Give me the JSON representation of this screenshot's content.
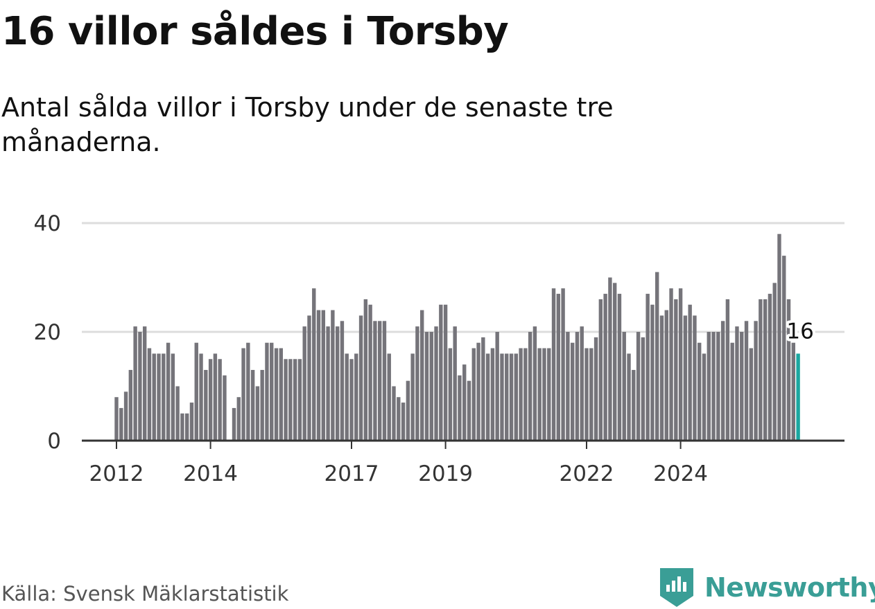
{
  "title": "16 villor såldes i Torsby",
  "subtitle": "Antal sålda villor i Torsby under de senaste tre månaderna.",
  "source": "Källa: Svensk Mäklarstatistik",
  "brand": {
    "name": "Newsworthy",
    "icon": "newsworthy-logo-icon",
    "color": "#3a9e96"
  },
  "colors": {
    "bar": "#75747a",
    "highlight": "#1aa7a0",
    "grid": "#dddddd",
    "axis": "#333333"
  },
  "chart_data": {
    "type": "bar",
    "x_start": "2012-01",
    "x_interval": "month",
    "values": [
      8,
      6,
      9,
      13,
      21,
      20,
      21,
      17,
      16,
      16,
      16,
      18,
      16,
      10,
      5,
      5,
      7,
      18,
      16,
      13,
      15,
      16,
      15,
      12,
      0,
      6,
      8,
      17,
      18,
      13,
      10,
      13,
      18,
      18,
      17,
      17,
      15,
      15,
      15,
      15,
      21,
      23,
      28,
      24,
      24,
      21,
      24,
      21,
      22,
      16,
      15,
      16,
      23,
      26,
      25,
      22,
      22,
      22,
      16,
      10,
      8,
      7,
      11,
      16,
      21,
      24,
      20,
      20,
      21,
      25,
      25,
      17,
      21,
      12,
      14,
      11,
      17,
      18,
      19,
      16,
      17,
      20,
      16,
      16,
      16,
      16,
      17,
      17,
      20,
      21,
      17,
      17,
      17,
      28,
      27,
      28,
      20,
      18,
      20,
      21,
      17,
      17,
      19,
      26,
      27,
      30,
      29,
      27,
      20,
      16,
      13,
      20,
      19,
      27,
      25,
      31,
      23,
      24,
      28,
      26,
      28,
      23,
      25,
      23,
      18,
      16,
      20,
      20,
      20,
      22,
      26,
      18,
      21,
      20,
      22,
      17,
      22,
      26,
      26,
      27,
      29,
      38,
      34,
      26,
      18,
      16
    ],
    "highlight_index": 145,
    "highlight_label": "16",
    "x_ticks": [
      {
        "label": "2012",
        "index": 0
      },
      {
        "label": "2014",
        "index": 20
      },
      {
        "label": "2017",
        "index": 50
      },
      {
        "label": "2019",
        "index": 70
      },
      {
        "label": "2022",
        "index": 100
      },
      {
        "label": "2024",
        "index": 120
      }
    ],
    "y_ticks": [
      0,
      20,
      40
    ],
    "ylim": [
      0,
      40
    ],
    "grid": true,
    "xlabel": "",
    "ylabel": ""
  }
}
